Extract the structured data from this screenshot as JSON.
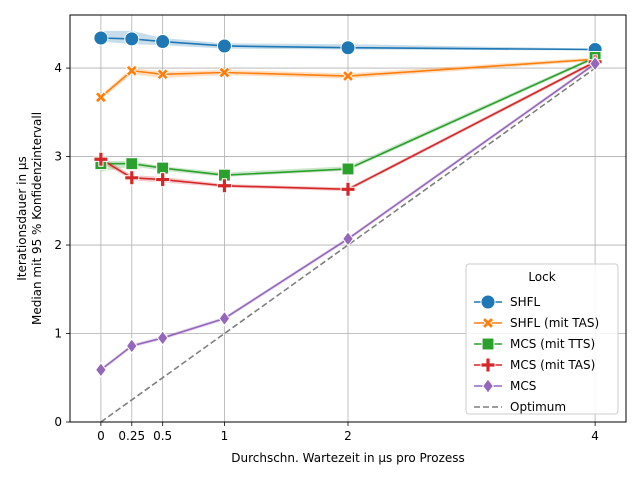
{
  "chart_data": {
    "type": "line",
    "xlabel": "Durchschn. Wartezeit in µs pro Prozess",
    "ylabel_lines": [
      "Iterationsdauer in µs",
      "Median mit 95 % Konfidenzintervall"
    ],
    "xlim": [
      -0.25,
      4.25
    ],
    "ylim": [
      0,
      4.6
    ],
    "x_ticks": [
      0,
      0.25,
      0.5,
      1,
      2,
      4
    ],
    "x_tick_labels": [
      "0",
      "0.25",
      "0.5",
      "1",
      "2",
      "4"
    ],
    "y_ticks": [
      0,
      1,
      2,
      3,
      4
    ],
    "y_tick_labels": [
      "0",
      "1",
      "2",
      "3",
      "4"
    ],
    "grid": true,
    "legend": {
      "title": "Lock",
      "position": "lower-right"
    },
    "x": [
      0,
      0.25,
      0.5,
      1,
      2,
      4
    ],
    "series": [
      {
        "name": "SHFL",
        "marker": "circle",
        "color": "#1f77b4",
        "values": [
          4.34,
          4.33,
          4.3,
          4.25,
          4.23,
          4.21
        ],
        "ci_lower": [
          4.3,
          4.27,
          4.26,
          4.22,
          4.21,
          4.2
        ],
        "ci_upper": [
          4.42,
          4.42,
          4.34,
          4.28,
          4.27,
          4.22
        ]
      },
      {
        "name": "SHFL (mit TAS)",
        "marker": "x",
        "color": "#ff7f0e",
        "values": [
          3.67,
          3.97,
          3.93,
          3.95,
          3.91,
          4.1
        ],
        "ci_lower": [
          3.64,
          3.93,
          3.89,
          3.92,
          3.88,
          4.08
        ],
        "ci_upper": [
          3.7,
          4.0,
          3.96,
          3.98,
          3.94,
          4.12
        ]
      },
      {
        "name": "MCS (mit TTS)",
        "marker": "square",
        "color": "#2ca02c",
        "values": [
          2.92,
          2.92,
          2.87,
          2.79,
          2.86,
          4.12
        ],
        "ci_lower": [
          2.83,
          2.89,
          2.84,
          2.77,
          2.84,
          4.1
        ],
        "ci_upper": [
          2.95,
          2.95,
          2.89,
          2.82,
          2.89,
          4.14
        ]
      },
      {
        "name": "MCS (mit TAS)",
        "marker": "plus",
        "color": "#d62728",
        "values": [
          2.97,
          2.76,
          2.74,
          2.67,
          2.63,
          4.07
        ],
        "ci_lower": [
          2.94,
          2.73,
          2.71,
          2.65,
          2.61,
          4.05
        ],
        "ci_upper": [
          3.0,
          2.79,
          2.77,
          2.69,
          2.65,
          4.09
        ]
      },
      {
        "name": "MCS",
        "marker": "diamond",
        "color": "#9467bd",
        "values": [
          0.59,
          0.86,
          0.95,
          1.17,
          2.07,
          4.05
        ],
        "ci_lower": [
          0.57,
          0.84,
          0.93,
          1.15,
          2.05,
          4.03
        ],
        "ci_upper": [
          0.61,
          0.88,
          0.97,
          1.19,
          2.09,
          4.07
        ]
      },
      {
        "name": "Optimum",
        "marker": "none",
        "dashed": true,
        "color": "#7f7f7f",
        "x": [
          0,
          4
        ],
        "values": [
          0,
          4
        ]
      }
    ]
  }
}
